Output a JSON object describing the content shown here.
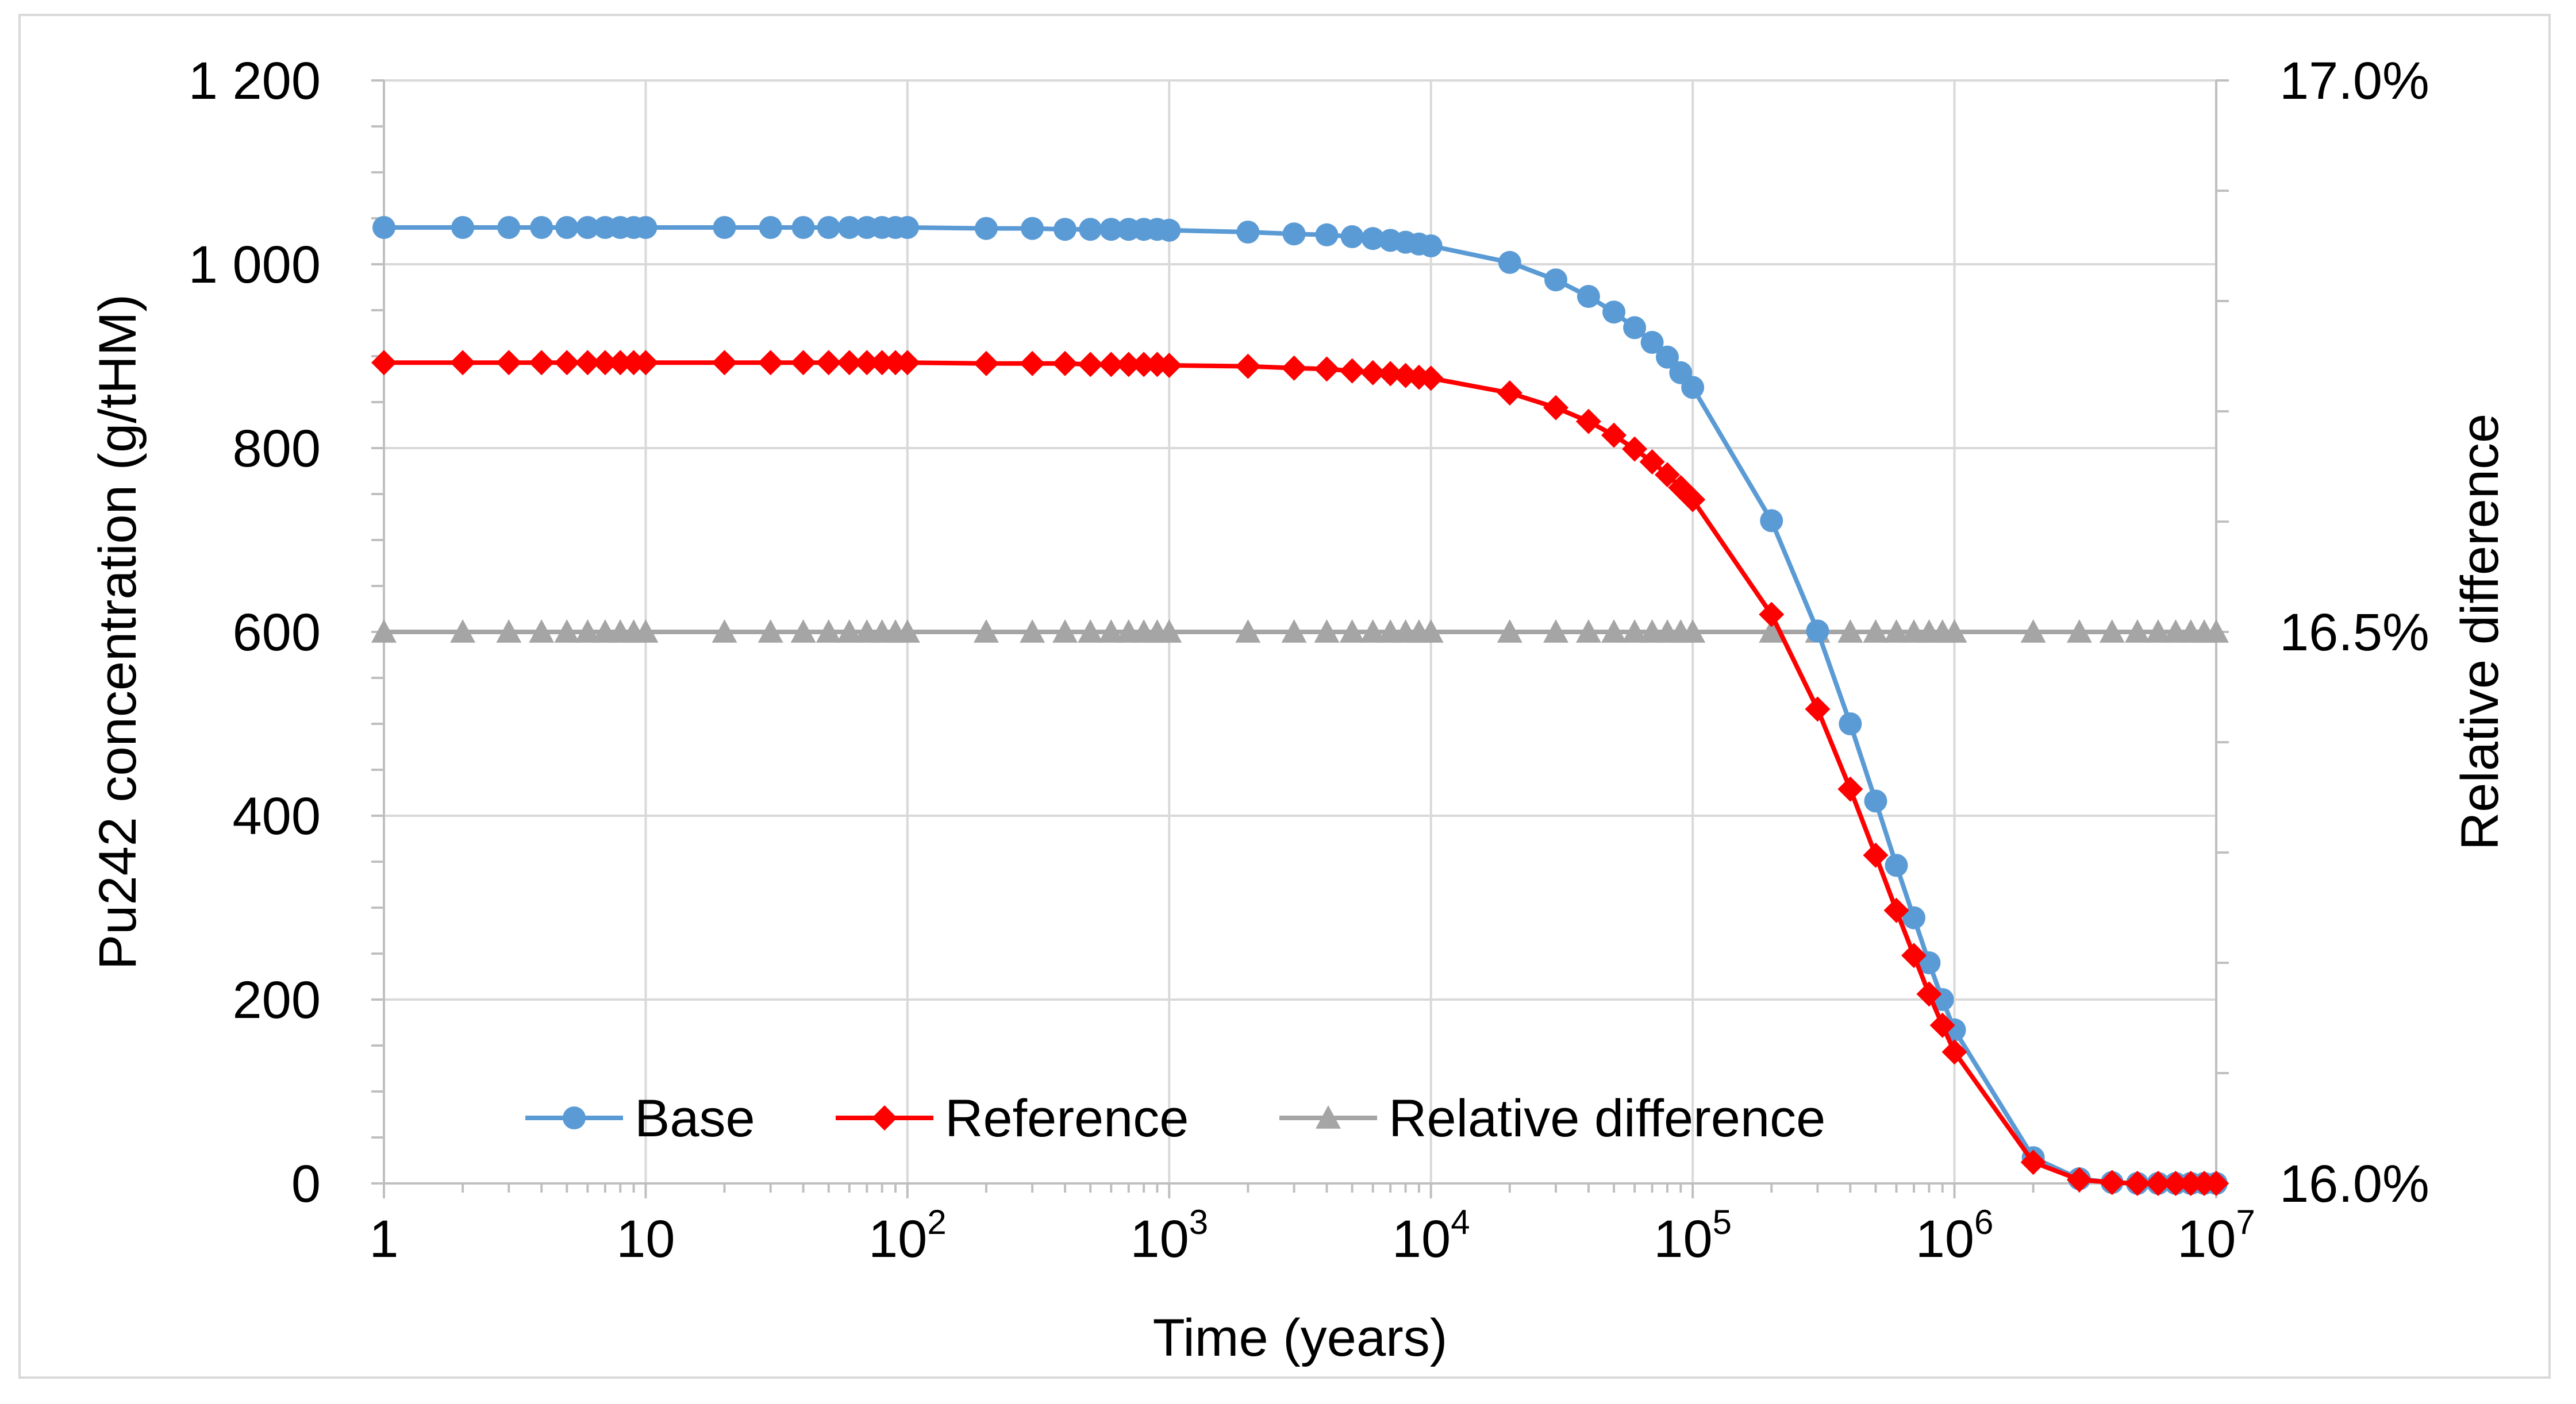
{
  "chart_data": {
    "type": "line",
    "title": "",
    "xlabel": "Time (years)",
    "ylabel": "Pu242 concentration (g/tHM)",
    "y2label": "Relative difference",
    "xscale": "log",
    "xlim": [
      1,
      10000000
    ],
    "ylim": [
      0,
      1200
    ],
    "y2lim": [
      0.16,
      0.17
    ],
    "grid": true,
    "legend_position": "bottom-center",
    "x_ticks": [
      {
        "value": 1,
        "base": "1",
        "exp": ""
      },
      {
        "value": 10,
        "base": "10",
        "exp": ""
      },
      {
        "value": 100,
        "base": "10",
        "exp": "2"
      },
      {
        "value": 1000,
        "base": "10",
        "exp": "3"
      },
      {
        "value": 10000,
        "base": "10",
        "exp": "4"
      },
      {
        "value": 100000,
        "base": "10",
        "exp": "5"
      },
      {
        "value": 1000000,
        "base": "10",
        "exp": "6"
      },
      {
        "value": 10000000,
        "base": "10",
        "exp": "7"
      }
    ],
    "y_ticks": [
      {
        "value": 0,
        "label": "0"
      },
      {
        "value": 200,
        "label": "200"
      },
      {
        "value": 400,
        "label": "400"
      },
      {
        "value": 600,
        "label": "600"
      },
      {
        "value": 800,
        "label": "800"
      },
      {
        "value": 1000,
        "label": "1 000"
      },
      {
        "value": 1200,
        "label": "1 200"
      }
    ],
    "y2_ticks": [
      {
        "value": 0.16,
        "label": "16.0%"
      },
      {
        "value": 0.165,
        "label": "16.5%"
      },
      {
        "value": 0.17,
        "label": "17.0%"
      }
    ],
    "x": [
      1,
      2,
      3,
      4,
      5,
      6,
      7,
      8,
      9,
      10,
      20,
      30,
      40,
      50,
      60,
      70,
      80,
      90,
      100,
      200,
      300,
      400,
      500,
      600,
      700,
      800,
      900,
      1000,
      2000,
      3000,
      4000,
      5000,
      6000,
      7000,
      8000,
      9000,
      10000,
      20000,
      30000,
      40000,
      50000,
      60000,
      70000,
      80000,
      90000,
      100000,
      200000,
      300000,
      400000,
      500000,
      600000,
      700000,
      800000,
      900000,
      1000000,
      2000000,
      3000000,
      4000000,
      5000000,
      6000000,
      7000000,
      8000000,
      9000000,
      10000000
    ],
    "series": [
      {
        "name": "Base",
        "color": "#5b9bd5",
        "marker": "circle",
        "axis": "left",
        "values": [
          1040,
          1040,
          1040,
          1040,
          1040,
          1040,
          1040,
          1040,
          1040,
          1040,
          1040,
          1040,
          1040,
          1040,
          1040,
          1040,
          1040,
          1040,
          1040,
          1039,
          1039,
          1038,
          1038,
          1038,
          1038,
          1038,
          1038,
          1037,
          1035,
          1033,
          1032,
          1030,
          1028,
          1026,
          1024,
          1022,
          1020,
          1002,
          983,
          965,
          948,
          931,
          915,
          899,
          882,
          866,
          721,
          601,
          500,
          416,
          346,
          289,
          240,
          200,
          167,
          28,
          5,
          1,
          0,
          0,
          0,
          0,
          0,
          0
        ]
      },
      {
        "name": "Reference",
        "color": "#ff0000",
        "marker": "diamond",
        "axis": "left",
        "values": [
          893,
          893,
          893,
          893,
          893,
          893,
          893,
          893,
          893,
          893,
          893,
          893,
          893,
          893,
          893,
          893,
          893,
          893,
          893,
          892,
          892,
          892,
          891,
          891,
          891,
          891,
          891,
          890,
          889,
          887,
          886,
          884,
          882,
          881,
          879,
          877,
          876,
          860,
          844,
          829,
          814,
          799,
          785,
          771,
          757,
          744,
          619,
          516,
          429,
          357,
          297,
          248,
          206,
          172,
          143,
          23,
          4,
          1,
          0,
          0,
          0,
          0,
          0,
          0
        ]
      },
      {
        "name": "Relative difference",
        "color": "#a5a5a5",
        "marker": "triangle",
        "axis": "right",
        "values": [
          0.165,
          0.165,
          0.165,
          0.165,
          0.165,
          0.165,
          0.165,
          0.165,
          0.165,
          0.165,
          0.165,
          0.165,
          0.165,
          0.165,
          0.165,
          0.165,
          0.165,
          0.165,
          0.165,
          0.165,
          0.165,
          0.165,
          0.165,
          0.165,
          0.165,
          0.165,
          0.165,
          0.165,
          0.165,
          0.165,
          0.165,
          0.165,
          0.165,
          0.165,
          0.165,
          0.165,
          0.165,
          0.165,
          0.165,
          0.165,
          0.165,
          0.165,
          0.165,
          0.165,
          0.165,
          0.165,
          0.165,
          0.165,
          0.165,
          0.165,
          0.165,
          0.165,
          0.165,
          0.165,
          0.165,
          0.165,
          0.165,
          0.165,
          0.165,
          0.165,
          0.165,
          0.165,
          0.165,
          0.165
        ]
      }
    ]
  }
}
